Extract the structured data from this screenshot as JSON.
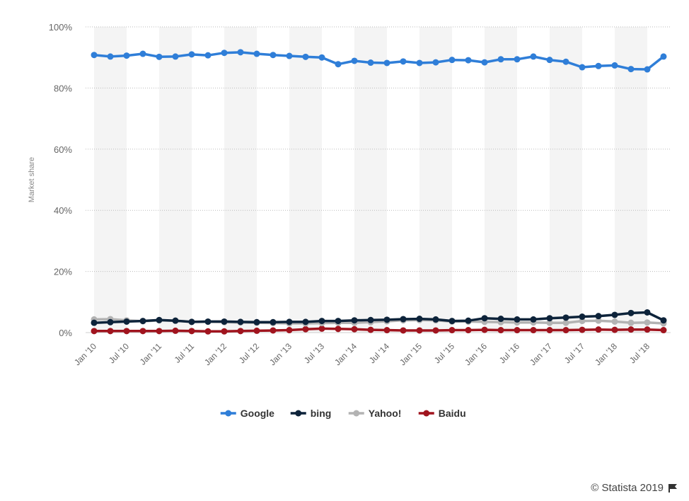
{
  "chart_data": {
    "type": "line",
    "ylabel": "Market share",
    "ylim": [
      0,
      100
    ],
    "yticks": [
      "0%",
      "20%",
      "40%",
      "60%",
      "80%",
      "100%"
    ],
    "x": [
      "Jan '10",
      "Apr '10",
      "Jul '10",
      "Oct '10",
      "Jan '11",
      "Apr '11",
      "Jul '11",
      "Oct '11",
      "Jan '12",
      "Apr '12",
      "Jul '12",
      "Oct '12",
      "Jan '13",
      "Apr '13",
      "Jul '13",
      "Oct '13",
      "Jan '14",
      "Apr '14",
      "Jul '14",
      "Oct '14",
      "Jan '15",
      "Apr '15",
      "Jul '15",
      "Oct '15",
      "Jan '16",
      "Apr '16",
      "Jul '16",
      "Oct '16",
      "Jan '17",
      "Apr '17",
      "Jul '17",
      "Oct '17",
      "Jan '18",
      "Apr '18",
      "Jul '18",
      "Oct '18"
    ],
    "x_tick_labels": [
      "Jan '10",
      "Jul '10",
      "Jan '11",
      "Jul '11",
      "Jan '12",
      "Jul '12",
      "Jan '13",
      "Jul '13",
      "Jan '14",
      "Jul '14",
      "Jan '15",
      "Jul '15",
      "Jan '16",
      "Jul '16",
      "Jan '17",
      "Jul '17",
      "Jan '18",
      "Jul '18"
    ],
    "grid": true,
    "legend_position": "bottom-center",
    "series": [
      {
        "name": "Google",
        "color": "#2f7ed8",
        "values": [
          90.8,
          90.3,
          90.6,
          91.2,
          90.2,
          90.3,
          91.0,
          90.7,
          91.5,
          91.7,
          91.2,
          90.8,
          90.5,
          90.2,
          90.0,
          87.8,
          88.9,
          88.3,
          88.2,
          88.7,
          88.2,
          88.4,
          89.2,
          89.1,
          88.4,
          89.4,
          89.4,
          90.3,
          89.2,
          88.6,
          86.8,
          87.2,
          87.4,
          86.2,
          86.1,
          90.3
        ]
      },
      {
        "name": "bing",
        "color": "#0d233a",
        "values": [
          3.2,
          3.4,
          3.6,
          3.8,
          4.1,
          3.9,
          3.5,
          3.6,
          3.6,
          3.5,
          3.4,
          3.4,
          3.5,
          3.5,
          3.8,
          3.8,
          4.0,
          4.1,
          4.2,
          4.4,
          4.5,
          4.3,
          3.8,
          3.9,
          4.7,
          4.5,
          4.3,
          4.3,
          4.7,
          4.9,
          5.2,
          5.4,
          5.8,
          6.4,
          6.6,
          4.0
        ]
      },
      {
        "name": "Yahoo!",
        "color": "#b3b3b3",
        "values": [
          4.3,
          4.4,
          4.0,
          3.7,
          4.0,
          3.9,
          3.5,
          3.5,
          3.4,
          3.3,
          3.2,
          3.1,
          3.0,
          3.0,
          3.1,
          3.2,
          3.2,
          3.4,
          3.7,
          4.0,
          4.1,
          4.0,
          3.6,
          3.6,
          3.5,
          3.4,
          3.3,
          3.3,
          3.2,
          3.2,
          3.8,
          3.9,
          3.6,
          3.2,
          3.3,
          3.0
        ]
      },
      {
        "name": "Baidu",
        "color": "#a0141e",
        "values": [
          0.5,
          0.5,
          0.5,
          0.5,
          0.5,
          0.6,
          0.5,
          0.4,
          0.4,
          0.5,
          0.6,
          0.7,
          0.8,
          1.1,
          1.3,
          1.2,
          1.1,
          0.9,
          0.8,
          0.7,
          0.7,
          0.7,
          0.8,
          0.8,
          0.9,
          0.8,
          0.8,
          0.8,
          0.8,
          0.8,
          0.9,
          1.0,
          0.9,
          1.0,
          1.0,
          0.8
        ]
      }
    ]
  },
  "credit": "© Statista 2019",
  "flag_icon": "flag-icon"
}
